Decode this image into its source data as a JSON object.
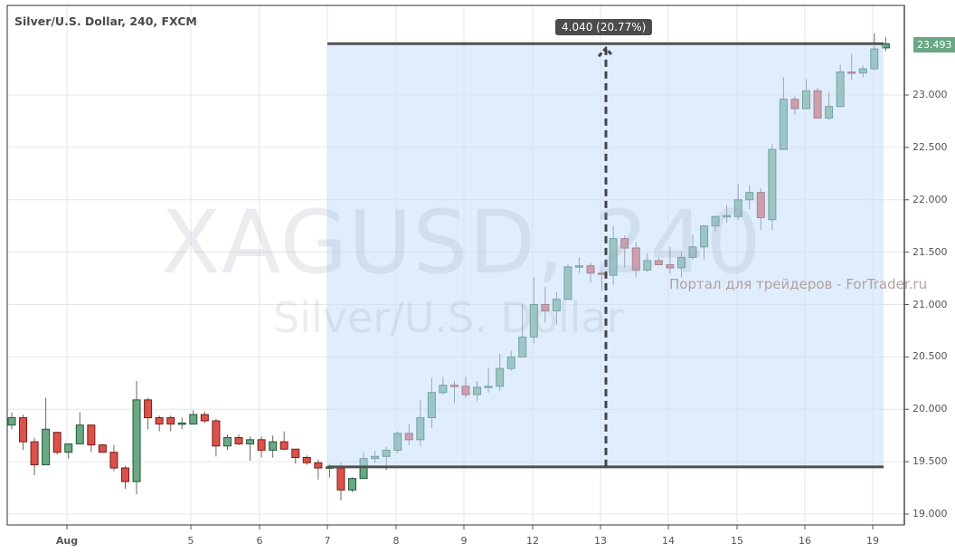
{
  "header": {
    "title": "Silver/U.S. Dollar, 240, FXCM"
  },
  "watermark": {
    "symbol": "XAGUSD, 240",
    "name": "Silver/U.S. Dollar"
  },
  "overlay_text": "Портал для трейдеров - ForTrader.ru",
  "measure": {
    "label": "4.040 (20.77%)",
    "from": 19.45,
    "to": 23.49
  },
  "last_price": "23.493",
  "colors": {
    "up": "#6aa784",
    "up_border": "#1e5a34",
    "down": "#d9534a",
    "down_border": "#7a1b17",
    "range_fill": "#dcebfc",
    "last_badge": "#6aa784"
  },
  "chart_data": {
    "type": "candlestick",
    "ylim": [
      18.9,
      23.6
    ],
    "grid": true,
    "y_ticks": [
      "19.000",
      "19.500",
      "20.000",
      "20.500",
      "21.000",
      "21.500",
      "22.000",
      "22.500",
      "23.000"
    ],
    "x_ticks": [
      "Aug",
      "5",
      "6",
      "7",
      "8",
      "9",
      "12",
      "13",
      "14",
      "15",
      "16",
      "19"
    ],
    "ohlc": [
      [
        19.85,
        19.97,
        19.81,
        19.92
      ],
      [
        19.92,
        19.95,
        19.61,
        19.69
      ],
      [
        19.69,
        19.73,
        19.37,
        19.47
      ],
      [
        19.47,
        20.11,
        19.47,
        19.81
      ],
      [
        19.78,
        19.78,
        19.57,
        19.59
      ],
      [
        19.59,
        19.67,
        19.53,
        19.67
      ],
      [
        19.67,
        19.97,
        19.67,
        19.85
      ],
      [
        19.85,
        19.85,
        19.59,
        19.66
      ],
      [
        19.66,
        19.67,
        19.59,
        19.59
      ],
      [
        19.59,
        19.66,
        19.41,
        19.44
      ],
      [
        19.44,
        19.46,
        19.24,
        19.31
      ],
      [
        19.31,
        20.27,
        19.19,
        20.09
      ],
      [
        20.09,
        20.11,
        19.81,
        19.92
      ],
      [
        19.92,
        19.94,
        19.79,
        19.86
      ],
      [
        19.92,
        19.94,
        19.79,
        19.86
      ],
      [
        19.86,
        19.92,
        19.81,
        19.87
      ],
      [
        19.86,
        19.99,
        19.86,
        19.95
      ],
      [
        19.95,
        19.98,
        19.87,
        19.89
      ],
      [
        19.89,
        19.91,
        19.55,
        19.65
      ],
      [
        19.65,
        19.76,
        19.61,
        19.73
      ],
      [
        19.73,
        19.76,
        19.66,
        19.67
      ],
      [
        19.67,
        19.74,
        19.51,
        19.71
      ],
      [
        19.71,
        19.74,
        19.54,
        19.61
      ],
      [
        19.61,
        19.75,
        19.54,
        19.69
      ],
      [
        19.69,
        19.79,
        19.61,
        19.62
      ],
      [
        19.62,
        19.62,
        19.48,
        19.54
      ],
      [
        19.54,
        19.56,
        19.47,
        19.49
      ],
      [
        19.49,
        19.52,
        19.33,
        19.44
      ],
      [
        19.44,
        19.48,
        19.35,
        19.45
      ],
      [
        19.44,
        19.49,
        19.13,
        19.23
      ],
      [
        19.23,
        19.35,
        19.21,
        19.34
      ],
      [
        19.34,
        19.59,
        19.34,
        19.53
      ],
      [
        19.53,
        19.6,
        19.49,
        19.55
      ],
      [
        19.55,
        19.64,
        19.42,
        19.61
      ],
      [
        19.61,
        19.79,
        19.58,
        19.77
      ],
      [
        19.77,
        19.86,
        19.66,
        19.71
      ],
      [
        19.71,
        20.09,
        19.65,
        19.92
      ],
      [
        19.92,
        20.3,
        19.82,
        20.16
      ],
      [
        20.16,
        20.31,
        20.14,
        20.23
      ],
      [
        20.23,
        20.27,
        20.06,
        20.22
      ],
      [
        20.22,
        20.31,
        20.11,
        20.14
      ],
      [
        20.14,
        20.27,
        20.08,
        20.21
      ],
      [
        20.21,
        20.4,
        20.16,
        20.22
      ],
      [
        20.22,
        20.53,
        20.18,
        20.39
      ],
      [
        20.39,
        20.56,
        20.37,
        20.5
      ],
      [
        20.5,
        21.0,
        20.5,
        20.69
      ],
      [
        20.69,
        21.26,
        20.63,
        21.0
      ],
      [
        21.0,
        21.17,
        20.83,
        20.94
      ],
      [
        20.94,
        21.12,
        20.81,
        21.05
      ],
      [
        21.05,
        21.39,
        21.05,
        21.36
      ],
      [
        21.36,
        21.45,
        21.3,
        21.37
      ],
      [
        21.37,
        21.4,
        21.21,
        21.3
      ],
      [
        21.3,
        21.32,
        21.13,
        21.29
      ],
      [
        21.28,
        21.75,
        21.19,
        21.63
      ],
      [
        21.63,
        21.66,
        21.35,
        21.54
      ],
      [
        21.54,
        21.6,
        21.26,
        21.33
      ],
      [
        21.33,
        21.49,
        21.31,
        21.42
      ],
      [
        21.42,
        21.45,
        21.38,
        21.38
      ],
      [
        21.38,
        21.55,
        21.29,
        21.35
      ],
      [
        21.35,
        21.5,
        21.26,
        21.45
      ],
      [
        21.45,
        21.67,
        21.43,
        21.55
      ],
      [
        21.55,
        21.76,
        21.43,
        21.75
      ],
      [
        21.75,
        21.85,
        21.7,
        21.84
      ],
      [
        21.84,
        21.95,
        21.78,
        21.85
      ],
      [
        21.84,
        22.15,
        21.81,
        22.0
      ],
      [
        22.0,
        22.14,
        21.91,
        22.07
      ],
      [
        22.07,
        22.11,
        21.71,
        21.83
      ],
      [
        21.81,
        22.53,
        21.71,
        22.48
      ],
      [
        22.48,
        23.17,
        22.48,
        22.96
      ],
      [
        22.96,
        22.99,
        22.81,
        22.87
      ],
      [
        22.87,
        23.15,
        22.87,
        23.04
      ],
      [
        23.04,
        23.07,
        22.78,
        22.78
      ],
      [
        22.78,
        23.03,
        22.76,
        22.89
      ],
      [
        22.89,
        23.29,
        22.89,
        23.22
      ],
      [
        23.22,
        23.39,
        23.14,
        23.21
      ],
      [
        23.21,
        23.28,
        23.17,
        23.25
      ],
      [
        23.25,
        23.59,
        23.24,
        23.44
      ],
      [
        23.45,
        23.55,
        23.42,
        23.49
      ]
    ]
  }
}
